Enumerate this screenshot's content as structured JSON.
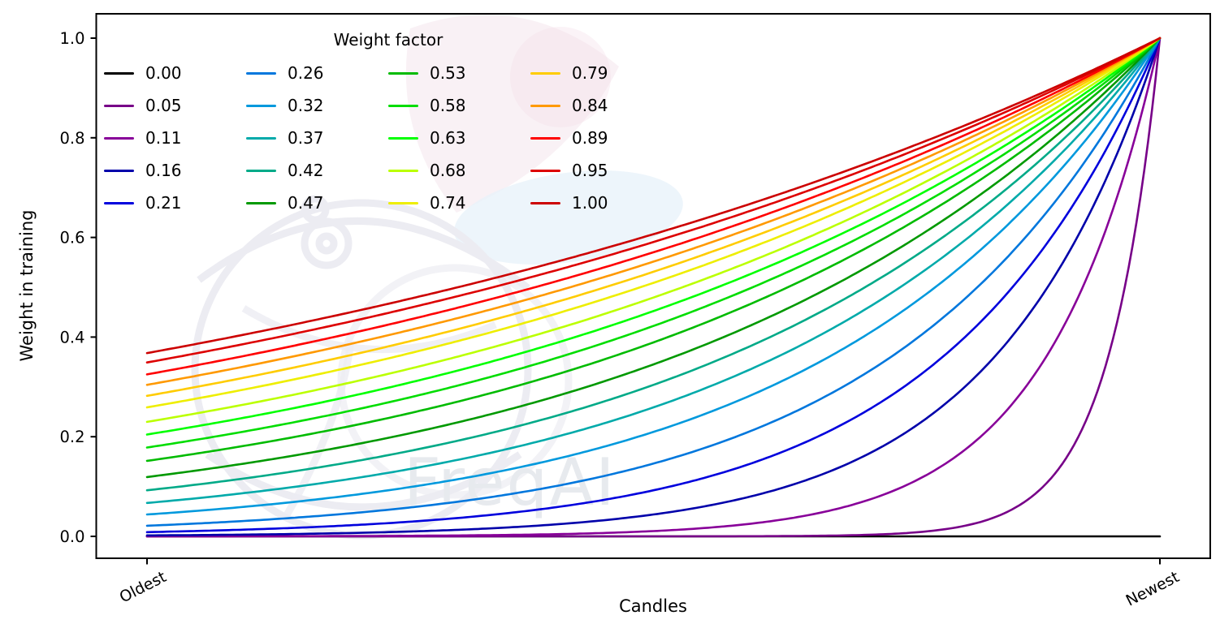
{
  "figure": {
    "background": "#ffffff",
    "watermark_text": "FreqAI"
  },
  "chart_data": {
    "type": "line",
    "title": "",
    "xlabel": "Candles",
    "ylabel": "Weight in training",
    "x_tick_labels": [
      "Oldest",
      "Newest"
    ],
    "y_ticks": [
      0,
      0.2,
      0.4,
      0.6,
      0.8,
      1.0
    ],
    "y_tick_labels": [
      "0.0",
      "0.2",
      "0.4",
      "0.6",
      "0.8",
      "1.0"
    ],
    "ylim": [
      0,
      1
    ],
    "grid": false,
    "legend": {
      "title": "Weight factor",
      "position": "upper left",
      "columns": 4,
      "rows": 5,
      "order": "column-major",
      "frame": false
    },
    "formula": "weight(x) = exp(-(1 - x) / weight_factor), x from 0 (Oldest) to 1 (Newest); weight_factor 0.00 renders flat at 0",
    "sample_x": [
      0,
      0.25,
      0.5,
      0.75,
      1
    ],
    "series": [
      {
        "label": "0.00",
        "weight_factor": 0.0,
        "color": "#000000",
        "values": [
          0,
          0,
          0,
          0,
          0
        ]
      },
      {
        "label": "0.05",
        "weight_factor": 0.05,
        "color": "#770088",
        "values": [
          0,
          0,
          0,
          0.007,
          1
        ]
      },
      {
        "label": "0.11",
        "weight_factor": 0.11,
        "color": "#880099",
        "values": [
          0,
          0.001,
          0.011,
          0.103,
          1
        ]
      },
      {
        "label": "0.16",
        "weight_factor": 0.16,
        "color": "#0000aa",
        "values": [
          0.002,
          0.009,
          0.044,
          0.21,
          1
        ]
      },
      {
        "label": "0.21",
        "weight_factor": 0.21,
        "color": "#0000dd",
        "values": [
          0.009,
          0.028,
          0.092,
          0.304,
          1
        ]
      },
      {
        "label": "0.26",
        "weight_factor": 0.26,
        "color": "#0077dd",
        "values": [
          0.021,
          0.056,
          0.146,
          0.383,
          1
        ]
      },
      {
        "label": "0.32",
        "weight_factor": 0.32,
        "color": "#0099dd",
        "values": [
          0.044,
          0.096,
          0.21,
          0.458,
          1
        ]
      },
      {
        "label": "0.37",
        "weight_factor": 0.37,
        "color": "#00aaaa",
        "values": [
          0.067,
          0.132,
          0.259,
          0.509,
          1
        ]
      },
      {
        "label": "0.42",
        "weight_factor": 0.42,
        "color": "#00aa88",
        "values": [
          0.092,
          0.168,
          0.304,
          0.552,
          1
        ]
      },
      {
        "label": "0.47",
        "weight_factor": 0.47,
        "color": "#009900",
        "values": [
          0.119,
          0.203,
          0.345,
          0.587,
          1
        ]
      },
      {
        "label": "0.53",
        "weight_factor": 0.53,
        "color": "#00bb00",
        "values": [
          0.152,
          0.243,
          0.389,
          0.624,
          1
        ]
      },
      {
        "label": "0.58",
        "weight_factor": 0.58,
        "color": "#00dd00",
        "values": [
          0.178,
          0.274,
          0.422,
          0.65,
          1
        ]
      },
      {
        "label": "0.63",
        "weight_factor": 0.63,
        "color": "#00ff00",
        "values": [
          0.205,
          0.304,
          0.452,
          0.672,
          1
        ]
      },
      {
        "label": "0.68",
        "weight_factor": 0.68,
        "color": "#bbff00",
        "values": [
          0.23,
          0.332,
          0.48,
          0.692,
          1
        ]
      },
      {
        "label": "0.74",
        "weight_factor": 0.74,
        "color": "#eeee00",
        "values": [
          0.259,
          0.363,
          0.509,
          0.713,
          1
        ]
      },
      {
        "label": "0.79",
        "weight_factor": 0.79,
        "color": "#ffcc00",
        "values": [
          0.282,
          0.387,
          0.531,
          0.729,
          1
        ]
      },
      {
        "label": "0.84",
        "weight_factor": 0.84,
        "color": "#ff9900",
        "values": [
          0.304,
          0.409,
          0.552,
          0.742,
          1
        ]
      },
      {
        "label": "0.89",
        "weight_factor": 0.89,
        "color": "#ff0000",
        "values": [
          0.325,
          0.431,
          0.57,
          0.755,
          1
        ]
      },
      {
        "label": "0.95",
        "weight_factor": 0.95,
        "color": "#dd0000",
        "values": [
          0.349,
          0.454,
          0.591,
          0.769,
          1
        ]
      },
      {
        "label": "1.00",
        "weight_factor": 1.0,
        "color": "#cc0000",
        "values": [
          0.368,
          0.472,
          0.607,
          0.779,
          1
        ]
      }
    ]
  }
}
